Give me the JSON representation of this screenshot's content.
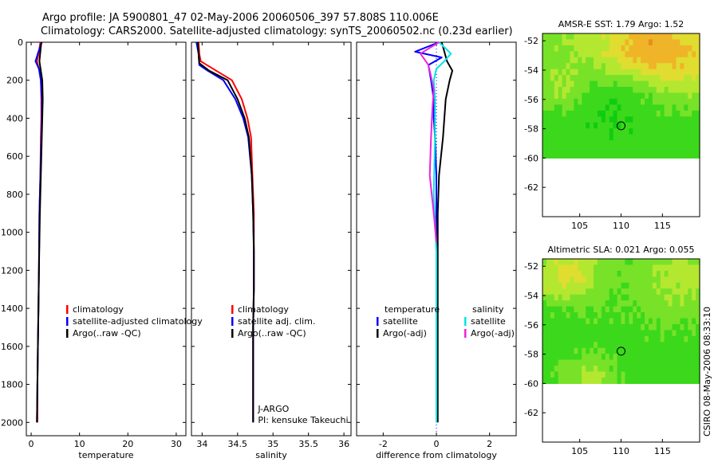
{
  "header": {
    "title_line1": "Argo profile: JA 5900801_47 02-May-2006 20060506_397 57.808S 110.006E",
    "title_line2": "Climatology: CARS2000. Satellite-adjusted climatology: synTS_20060502.nc (0.23d earlier)"
  },
  "credit": "CSIRO 08-May-2006 08:33:10",
  "chart_data": [
    {
      "type": "line",
      "id": "temperature",
      "xlabel": "temperature",
      "xlim": [
        -1,
        32
      ],
      "xticks": [
        0,
        10,
        20,
        30
      ],
      "ylim": [
        2070,
        0
      ],
      "yticks": [
        0,
        200,
        400,
        600,
        800,
        1000,
        1200,
        1400,
        1600,
        1800,
        2000
      ],
      "show_yticklabels": true,
      "legend": {
        "position": "lower-right",
        "entries": [
          "climatology",
          "satellite-adjusted climatology",
          "Argo(..raw -QC)"
        ]
      },
      "series": [
        {
          "name": "climatology",
          "color": "#ff0000",
          "x": [
            1.9,
            1.6,
            1.2,
            1.7,
            2.0,
            2.1,
            2.1,
            2.0,
            1.9,
            1.7,
            1.6,
            1.5,
            1.4,
            1.3,
            1.3
          ],
          "y": [
            0,
            50,
            100,
            150,
            200,
            300,
            400,
            500,
            700,
            900,
            1200,
            1400,
            1600,
            1800,
            2000
          ]
        },
        {
          "name": "satellite-adjusted climatology",
          "color": "#0000ff",
          "x": [
            2.2,
            1.5,
            0.9,
            1.6,
            2.0,
            2.2,
            2.2,
            2.1,
            1.9,
            1.7,
            1.6,
            1.5,
            1.4,
            1.3,
            1.2
          ],
          "y": [
            0,
            50,
            100,
            140,
            200,
            300,
            400,
            500,
            700,
            900,
            1200,
            1400,
            1600,
            1800,
            2000
          ]
        },
        {
          "name": "Argo(..raw -QC)",
          "color": "#000000",
          "x": [
            2.1,
            1.9,
            1.7,
            2.0,
            2.3,
            2.4,
            2.3,
            2.2,
            2.0,
            1.8,
            1.6,
            1.5,
            1.4,
            1.3,
            1.2
          ],
          "y": [
            0,
            50,
            100,
            150,
            200,
            300,
            400,
            500,
            700,
            900,
            1200,
            1400,
            1600,
            1800,
            2000
          ]
        }
      ]
    },
    {
      "type": "line",
      "id": "salinity",
      "xlabel": "salinity",
      "xlim": [
        33.85,
        36.1
      ],
      "xticks": [
        34,
        34.5,
        35,
        35.5,
        36
      ],
      "xticklabels": [
        "34",
        "34.5",
        "35",
        "35.5",
        "36"
      ],
      "ylim": [
        2070,
        0
      ],
      "yticks": [
        0,
        200,
        400,
        600,
        800,
        1000,
        1200,
        1400,
        1600,
        1800,
        2000
      ],
      "show_yticklabels": false,
      "legend": {
        "position": "lower-right",
        "entries": [
          "climatology",
          "satellite adj. clim.",
          "Argo(..raw -QC)"
        ]
      },
      "annotations": [
        "J-ARGO",
        "PI: kensuke Takeuchi"
      ],
      "series": [
        {
          "name": "climatology",
          "color": "#ff0000",
          "x": [
            33.95,
            33.96,
            33.98,
            34.2,
            34.42,
            34.56,
            34.64,
            34.69,
            34.71,
            34.73,
            34.73,
            34.73,
            34.72,
            34.72,
            34.72
          ],
          "y": [
            0,
            60,
            100,
            150,
            200,
            300,
            400,
            500,
            700,
            900,
            1100,
            1300,
            1500,
            1800,
            2000
          ]
        },
        {
          "name": "satellite adj. clim.",
          "color": "#0000ff",
          "x": [
            33.92,
            33.95,
            33.96,
            34.08,
            34.3,
            34.47,
            34.58,
            34.65,
            34.7,
            34.72,
            34.73,
            34.73,
            34.72,
            34.72,
            34.72
          ],
          "y": [
            0,
            60,
            120,
            150,
            200,
            300,
            400,
            500,
            700,
            900,
            1100,
            1300,
            1500,
            1800,
            2000
          ]
        },
        {
          "name": "Argo(..raw -QC)",
          "color": "#000000",
          "x": [
            33.94,
            33.95,
            33.96,
            34.1,
            34.36,
            34.5,
            34.6,
            34.66,
            34.7,
            34.72,
            34.73,
            34.73,
            34.72,
            34.72,
            34.72
          ],
          "y": [
            0,
            60,
            110,
            150,
            200,
            300,
            400,
            500,
            700,
            900,
            1100,
            1300,
            1500,
            1800,
            2000
          ]
        }
      ]
    },
    {
      "type": "line",
      "id": "difference",
      "xlabel": "difference from climatology",
      "xlim": [
        -3.0,
        3.0
      ],
      "xticks": [
        -2,
        0,
        2
      ],
      "ylim": [
        2070,
        0
      ],
      "yticks": [
        0,
        200,
        400,
        600,
        800,
        1000,
        1200,
        1400,
        1600,
        1800,
        2000
      ],
      "show_yticklabels": false,
      "legend": {
        "position": "lower-right",
        "groups": [
          {
            "header": "temperature",
            "entries": [
              {
                "label": "satellite",
                "color": "#0000ff"
              },
              {
                "label": "Argo(-adj)",
                "color": "#000000"
              }
            ]
          },
          {
            "header": "salinity",
            "entries": [
              {
                "label": "satellite",
                "color": "#00e5e5"
              },
              {
                "label": "Argo(-adj)",
                "color": "#ee22dd"
              }
            ]
          }
        ]
      },
      "series": [
        {
          "name": "temperature satellite",
          "color": "#0000ff",
          "x": [
            0.1,
            -0.8,
            0.2,
            -0.3,
            -0.2,
            -0.1,
            -0.1,
            -0.05,
            0.0,
            0.0,
            0.0,
            0.0,
            0.0,
            0.0,
            0.0
          ],
          "y": [
            0,
            50,
            80,
            120,
            200,
            300,
            400,
            500,
            700,
            900,
            1100,
            1300,
            1500,
            1800,
            2000
          ]
        },
        {
          "name": "temperature Argo(-adj)",
          "color": "#000000",
          "x": [
            0.2,
            0.3,
            0.4,
            0.6,
            0.5,
            0.35,
            0.3,
            0.25,
            0.1,
            0.05,
            0.05,
            0.05,
            0.05,
            0.05,
            0.05
          ],
          "y": [
            0,
            50,
            100,
            150,
            200,
            300,
            400,
            500,
            700,
            900,
            1100,
            1300,
            1500,
            1800,
            2000
          ]
        },
        {
          "name": "salinity satellite",
          "color": "#00e5e5",
          "x": [
            0.1,
            0.55,
            0.3,
            0.0,
            -0.1,
            -0.05,
            -0.05,
            -0.05,
            -0.1,
            0.0,
            0.0,
            0.0,
            0.0,
            0.0,
            0.0
          ],
          "y": [
            0,
            60,
            100,
            140,
            200,
            300,
            400,
            500,
            800,
            1100,
            1300,
            1500,
            1700,
            1900,
            2000
          ]
        },
        {
          "name": "salinity Argo(-adj)",
          "color": "#ee22dd",
          "x": [
            0.1,
            -0.6,
            -0.3,
            -0.2,
            -0.1,
            -0.15,
            -0.2,
            -0.25,
            -0.1,
            0.0
          ],
          "y": [
            0,
            60,
            120,
            180,
            250,
            350,
            500,
            700,
            900,
            1050
          ]
        }
      ]
    },
    {
      "type": "heatmap",
      "id": "amsr-e-sst",
      "title": "AMSR-E SST: 1.79  Argo: 1.52",
      "xlim": [
        100.5,
        119.5
      ],
      "xticks": [
        105,
        110,
        115
      ],
      "ylim": [
        -64.0,
        -51.5
      ],
      "yticks": [
        -52,
        -54,
        -56,
        -58,
        -60,
        -62
      ],
      "data_ymin": -60,
      "marker": {
        "x": 110.0,
        "y": -57.8
      },
      "palette": [
        "#10cc10",
        "#3cd81c",
        "#78e228",
        "#b4e830",
        "#e0dc30",
        "#f0b428",
        "#e88c20"
      ],
      "seed": 7
    },
    {
      "type": "heatmap",
      "id": "altimetric-sla",
      "title": "Altimetric SLA: 0.021  Argo: 0.055",
      "xlim": [
        100.5,
        119.5
      ],
      "xticks": [
        105,
        110,
        115
      ],
      "ylim": [
        -64.0,
        -51.5
      ],
      "yticks": [
        -52,
        -54,
        -56,
        -58,
        -60,
        -62
      ],
      "data_ymin": -60,
      "marker": {
        "x": 110.0,
        "y": -57.8
      },
      "palette": [
        "#10cc10",
        "#3cd81c",
        "#78e228",
        "#b4e830",
        "#e0dc30",
        "#f0b428",
        "#e07020"
      ],
      "seed": 21
    }
  ]
}
